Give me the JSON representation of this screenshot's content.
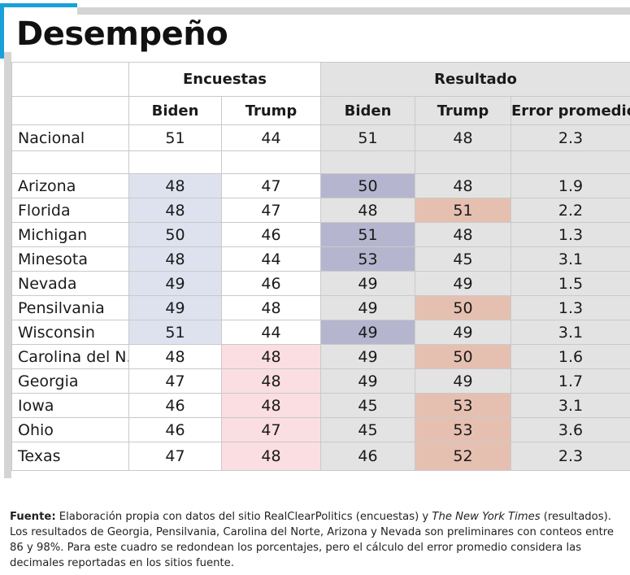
{
  "title": "Desempeño",
  "groups": {
    "polls": "Encuestas",
    "results": "Resultado"
  },
  "columns": {
    "poll_biden": "Biden",
    "poll_trump": "Trump",
    "res_biden": "Biden",
    "res_trump": "Trump",
    "error": "Error promedio"
  },
  "national": {
    "label": "Nacional",
    "poll_biden": "51",
    "poll_trump": "44",
    "res_biden": "51",
    "res_trump": "48",
    "error": "2.3"
  },
  "states": [
    {
      "name": "Arizona",
      "poll_biden": "48",
      "poll_trump": "47",
      "res_biden": "50",
      "res_trump": "48",
      "error": "1.9",
      "poll_lead": "biden",
      "res_win": "biden"
    },
    {
      "name": "Florida",
      "poll_biden": "48",
      "poll_trump": "47",
      "res_biden": "48",
      "res_trump": "51",
      "error": "2.2",
      "poll_lead": "biden",
      "res_win": "trump"
    },
    {
      "name": "Michigan",
      "poll_biden": "50",
      "poll_trump": "46",
      "res_biden": "51",
      "res_trump": "48",
      "error": "1.3",
      "poll_lead": "biden",
      "res_win": "biden"
    },
    {
      "name": "Minesota",
      "poll_biden": "48",
      "poll_trump": "44",
      "res_biden": "53",
      "res_trump": "45",
      "error": "3.1",
      "poll_lead": "biden",
      "res_win": "biden"
    },
    {
      "name": "Nevada",
      "poll_biden": "49",
      "poll_trump": "46",
      "res_biden": "49",
      "res_trump": "49",
      "error": "1.5",
      "poll_lead": "biden",
      "res_win": "none"
    },
    {
      "name": "Pensilvania",
      "poll_biden": "49",
      "poll_trump": "48",
      "res_biden": "49",
      "res_trump": "50",
      "error": "1.3",
      "poll_lead": "biden",
      "res_win": "trump"
    },
    {
      "name": "Wisconsin",
      "poll_biden": "51",
      "poll_trump": "44",
      "res_biden": "49",
      "res_trump": "49",
      "error": "3.1",
      "poll_lead": "biden",
      "res_win": "biden"
    },
    {
      "name": "Carolina del N.",
      "poll_biden": "48",
      "poll_trump": "48",
      "res_biden": "49",
      "res_trump": "50",
      "error": "1.6",
      "poll_lead": "trump",
      "res_win": "trump"
    },
    {
      "name": "Georgia",
      "poll_biden": "47",
      "poll_trump": "48",
      "res_biden": "49",
      "res_trump": "49",
      "error": "1.7",
      "poll_lead": "trump",
      "res_win": "none"
    },
    {
      "name": "Iowa",
      "poll_biden": "46",
      "poll_trump": "48",
      "res_biden": "45",
      "res_trump": "53",
      "error": "3.1",
      "poll_lead": "trump",
      "res_win": "trump"
    },
    {
      "name": "Ohio",
      "poll_biden": "46",
      "poll_trump": "47",
      "res_biden": "45",
      "res_trump": "53",
      "error": "3.6",
      "poll_lead": "trump",
      "res_win": "trump"
    },
    {
      "name": "Texas",
      "poll_biden": "47",
      "poll_trump": "48",
      "res_biden": "46",
      "res_trump": "52",
      "error": "2.3",
      "poll_lead": "trump",
      "res_win": "trump"
    }
  ],
  "colors": {
    "accent": "#1aa0d8",
    "poll_biden": "#dde2ee",
    "poll_trump": "#fbdee1",
    "res_biden": "#b6b5cf",
    "res_trump": "#e5c0b1",
    "res_bg": "#e3e3e3"
  },
  "footnote": {
    "label": "Fuente:",
    "part1": " Elaboración propia con datos del sitio RealClearPolitics (encuestas) y ",
    "source1": "The New York Times",
    "part2": " (resultados). Los resultados de Georgia, Pensilvania, Carolina del Norte, Arizona y Nevada son preliminares con conteos entre 86 y 98%. Para este cuadro se redondean los porcentajes, pero el cálculo del error promedio considera las decimales reportadas en los sitios fuente."
  }
}
